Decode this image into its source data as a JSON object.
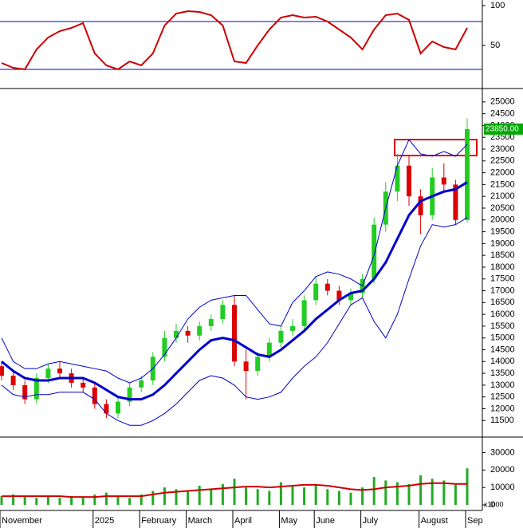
{
  "chart_data": [
    {
      "type": "line",
      "ylim": [
        -3,
        107
      ],
      "yticks": [
        50,
        100
      ],
      "levels": [
        20,
        80
      ],
      "level_color": "#0000cc",
      "series": [
        {
          "color": "#cc0000",
          "values": [
            28,
            22,
            20,
            45,
            60,
            68,
            72,
            78,
            40,
            25,
            20,
            30,
            25,
            40,
            75,
            90,
            93,
            92,
            88,
            75,
            30,
            28,
            50,
            70,
            85,
            88,
            85,
            86,
            80,
            70,
            60,
            45,
            70,
            88,
            90,
            82,
            40,
            55,
            48,
            45,
            72
          ]
        }
      ]
    },
    {
      "type": "candlestick",
      "ylim": [
        10800,
        25500
      ],
      "yticks": [
        11500,
        12000,
        12500,
        13000,
        13500,
        14000,
        14500,
        15000,
        15500,
        16000,
        16500,
        17000,
        17500,
        18000,
        18500,
        19000,
        19500,
        20000,
        20500,
        21000,
        21500,
        22000,
        22500,
        23000,
        23500,
        24000,
        24500,
        25000
      ],
      "up_color": "#22cc22",
      "down_color": "#dd0000",
      "open": [
        13800,
        13400,
        13000,
        12400,
        13300,
        13700,
        13500,
        13100,
        12900,
        12200,
        11800,
        12300,
        12900,
        13200,
        14200,
        15000,
        15300,
        15100,
        15500,
        15800,
        16400,
        14000,
        13600,
        14200,
        14800,
        15300,
        15500,
        16600,
        17300,
        17000,
        16600,
        16900,
        17500,
        19800,
        21200,
        22300,
        21000,
        20200,
        21800,
        21500,
        20000
      ],
      "high": [
        14000,
        13600,
        13200,
        13500,
        13900,
        14000,
        13700,
        13300,
        13100,
        12400,
        12500,
        13100,
        13400,
        14400,
        15300,
        15600,
        15500,
        15700,
        16000,
        16600,
        16800,
        14500,
        14400,
        15000,
        15500,
        15800,
        16800,
        17600,
        17500,
        17200,
        17100,
        17700,
        20100,
        21600,
        22800,
        22700,
        21300,
        22200,
        22400,
        21700,
        24300
      ],
      "low": [
        13200,
        12800,
        12200,
        12200,
        13100,
        13300,
        12900,
        12700,
        12000,
        11600,
        11600,
        12100,
        12700,
        13000,
        14000,
        14800,
        14800,
        14900,
        15300,
        15600,
        13800,
        12400,
        13400,
        14000,
        14600,
        15100,
        15300,
        16400,
        16800,
        16400,
        16400,
        16700,
        17300,
        19500,
        20800,
        20600,
        19400,
        20000,
        21200,
        19800,
        19900
      ],
      "close": [
        13400,
        13000,
        12400,
        13300,
        13700,
        13500,
        13100,
        12900,
        12200,
        11800,
        12300,
        12900,
        13200,
        14200,
        15000,
        15300,
        15100,
        15500,
        15800,
        16400,
        14000,
        13600,
        14200,
        14800,
        15300,
        15500,
        16600,
        17300,
        17000,
        16600,
        16900,
        17500,
        19800,
        21200,
        22300,
        21000,
        20200,
        21800,
        21500,
        20000,
        23850
      ],
      "series": [
        {
          "color": "#0000cc",
          "width": 1,
          "values": [
            15000,
            14000,
            13700,
            13700,
            13900,
            14000,
            13900,
            13800,
            13700,
            13600,
            13300,
            13100,
            13300,
            13700,
            14300,
            15000,
            15800,
            16300,
            16600,
            16700,
            16800,
            16800,
            16200,
            15600,
            15500,
            16500,
            17000,
            17600,
            17800,
            17700,
            17500,
            17200,
            18500,
            20500,
            22300,
            23400,
            22800,
            22700,
            22900,
            22700,
            23200
          ]
        },
        {
          "color": "#0000cc",
          "width": 3,
          "values": [
            14000,
            13600,
            13300,
            13200,
            13200,
            13300,
            13300,
            13300,
            13100,
            12800,
            12500,
            12400,
            12400,
            12600,
            13000,
            13500,
            14000,
            14500,
            14900,
            15000,
            14900,
            14600,
            14300,
            14200,
            14500,
            14900,
            15300,
            15800,
            16200,
            16600,
            16900,
            17000,
            17500,
            18200,
            19200,
            20200,
            20800,
            21000,
            21200,
            21300,
            21600
          ]
        },
        {
          "color": "#0000cc",
          "width": 1,
          "values": [
            13000,
            12600,
            12500,
            12600,
            12600,
            12700,
            12700,
            12700,
            12400,
            11800,
            11500,
            11300,
            11300,
            11500,
            11800,
            12200,
            12700,
            13200,
            13400,
            13300,
            13000,
            12500,
            12400,
            12500,
            12700,
            13300,
            13800,
            14200,
            14800,
            15600,
            16400,
            16700,
            15700,
            15000,
            16000,
            17500,
            18900,
            19800,
            19700,
            19800,
            20100
          ]
        }
      ],
      "last_label": {
        "value": 23850,
        "label": "23850.00"
      }
    },
    {
      "type": "bar",
      "ylim": [
        0,
        38000
      ],
      "yticks": [
        0,
        10000,
        20000,
        30000
      ],
      "unit_label": "x1000",
      "color": "#22aa22",
      "categories": [
        "November",
        null,
        null,
        null,
        null,
        null,
        null,
        null,
        "2025",
        null,
        null,
        null,
        "February",
        null,
        null,
        null,
        "March",
        null,
        null,
        null,
        "April",
        null,
        null,
        null,
        "May",
        null,
        null,
        "June",
        null,
        null,
        null,
        "July",
        null,
        null,
        null,
        null,
        "August",
        null,
        null,
        null,
        "Sep"
      ],
      "values": [
        5000,
        6000,
        5000,
        4000,
        5000,
        4000,
        5000,
        4000,
        6000,
        7000,
        5000,
        4000,
        6000,
        8000,
        10000,
        9000,
        8000,
        11000,
        9000,
        12000,
        15000,
        10000,
        9000,
        8000,
        13000,
        11000,
        10000,
        12000,
        9000,
        8000,
        7000,
        10000,
        16000,
        14000,
        13000,
        12000,
        17000,
        15000,
        14000,
        12000,
        21000
      ],
      "series": [
        {
          "color": "#cc0000",
          "values": [
            5000,
            5000,
            5000,
            5000,
            5000,
            5000,
            4500,
            4500,
            4500,
            5000,
            5000,
            5000,
            5000,
            6000,
            7000,
            7500,
            8000,
            8500,
            9000,
            9500,
            10000,
            10500,
            10500,
            10000,
            10500,
            11000,
            11500,
            11500,
            11000,
            10000,
            9000,
            8500,
            9000,
            10000,
            10500,
            11000,
            12000,
            12500,
            12500,
            12000,
            12000
          ]
        }
      ]
    }
  ]
}
